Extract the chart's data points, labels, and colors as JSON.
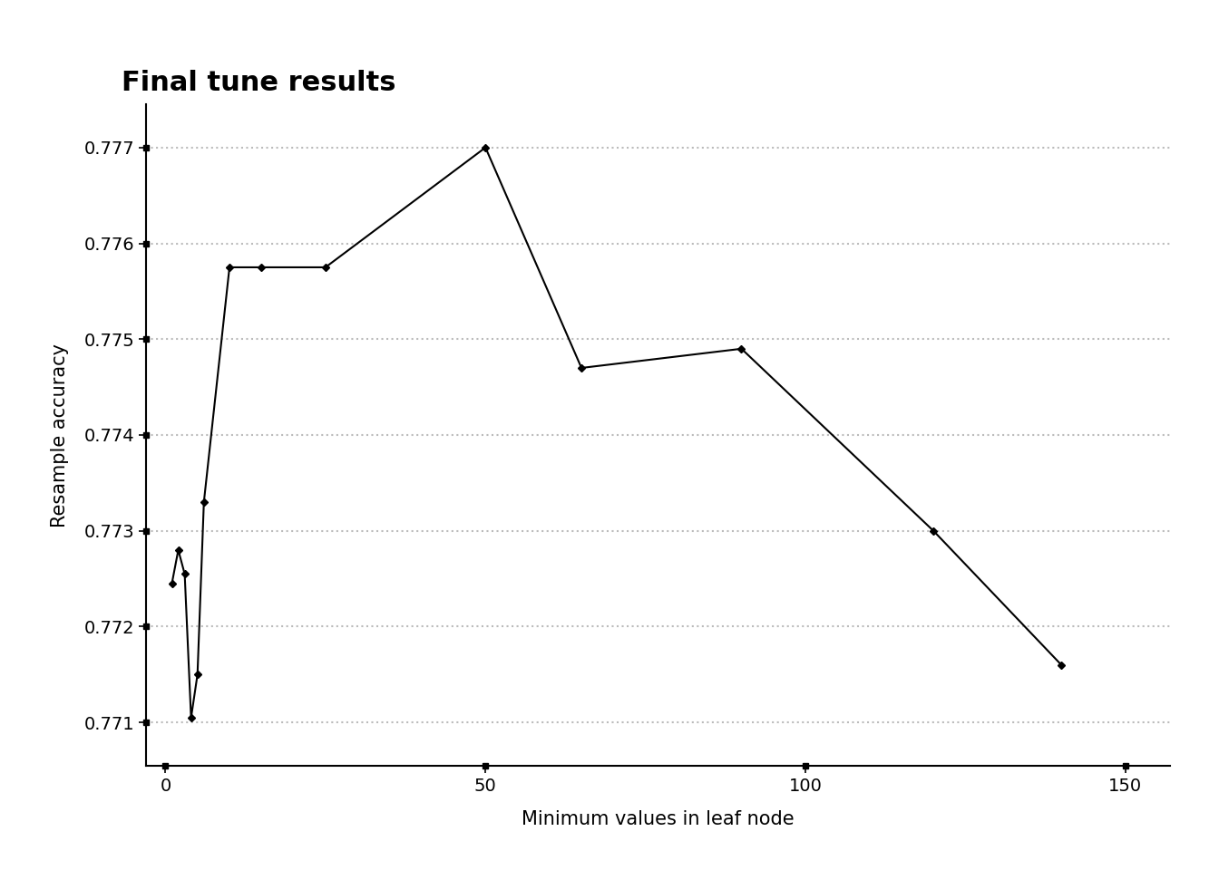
{
  "x": [
    1,
    2,
    3,
    4,
    5,
    6,
    10,
    15,
    25,
    50,
    65,
    90,
    120,
    140
  ],
  "y": [
    0.77245,
    0.7728,
    0.77255,
    0.77105,
    0.7715,
    0.7733,
    0.77575,
    0.77575,
    0.77575,
    0.777,
    0.7747,
    0.7749,
    0.773,
    0.7716
  ],
  "title": "Final tune results",
  "xlabel": "Minimum values in leaf node",
  "ylabel": "Resample accuracy",
  "xlim": [
    -3,
    157
  ],
  "ylim": [
    0.77055,
    0.77745
  ],
  "xticks": [
    0,
    50,
    100,
    150
  ],
  "yticks": [
    0.771,
    0.772,
    0.773,
    0.774,
    0.775,
    0.776,
    0.777
  ],
  "background_color": "#ffffff",
  "line_color": "#000000",
  "marker": "D",
  "marker_size": 4,
  "grid_color": "#bbbbbb",
  "title_fontsize": 22,
  "axis_label_fontsize": 15,
  "tick_fontsize": 14
}
